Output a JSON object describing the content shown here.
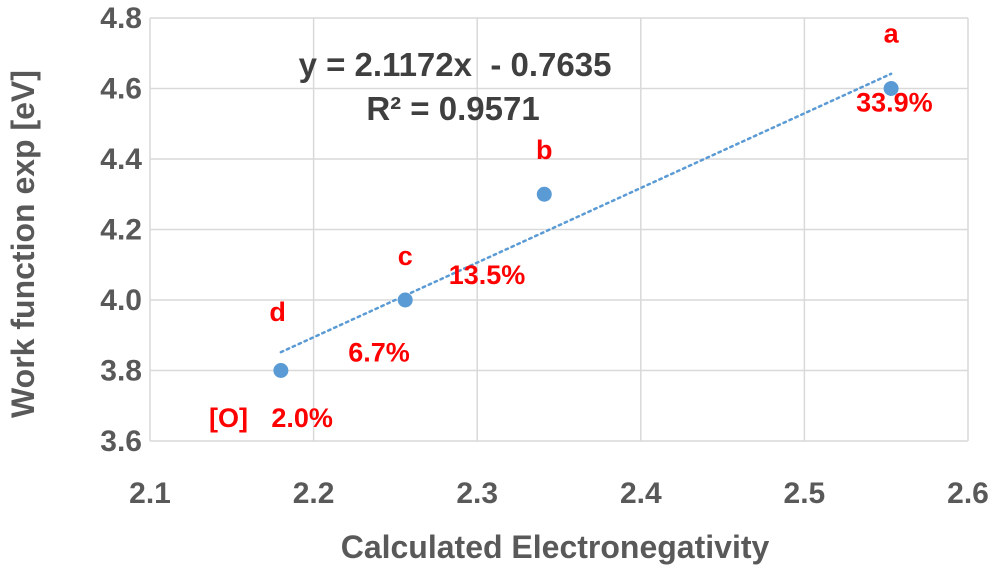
{
  "chart_data": {
    "type": "scatter",
    "xlabel": "Calculated Electronegativity",
    "ylabel": "Work function exp [eV]",
    "xlim": [
      2.1,
      2.6
    ],
    "ylim": [
      3.6,
      4.8
    ],
    "x_ticks": [
      "2.1",
      "2.2",
      "2.3",
      "2.4",
      "2.5",
      "2.6"
    ],
    "y_ticks": [
      "3.6",
      "3.8",
      "4.0",
      "4.2",
      "4.4",
      "4.6",
      "4.8"
    ],
    "grid": true,
    "marker_color": "#5b9bd5",
    "series": [
      {
        "points": [
          {
            "x": 2.18,
            "y": 3.8
          },
          {
            "x": 2.256,
            "y": 4.0
          },
          {
            "x": 2.341,
            "y": 4.3
          },
          {
            "x": 2.553,
            "y": 4.6
          }
        ]
      }
    ],
    "trendline": {
      "style": "dotted",
      "color": "#5b9bd5",
      "slope": 2.1172,
      "intercept": -0.7635,
      "x_range": [
        2.18,
        2.553
      ],
      "equation": "y = 2.1172x  - 0.7635",
      "r_squared": "R² = 0.9571"
    },
    "annotations": [
      {
        "text": "a",
        "x": 2.553,
        "y": 4.73
      },
      {
        "text": "33.9%",
        "x": 2.555,
        "y": 4.535
      },
      {
        "text": "b",
        "x": 2.341,
        "y": 4.4
      },
      {
        "text": "13.5%",
        "x": 2.306,
        "y": 4.045
      },
      {
        "text": "c",
        "x": 2.256,
        "y": 4.1
      },
      {
        "text": "6.7%",
        "x": 2.24,
        "y": 3.825
      },
      {
        "text": "d",
        "x": 2.178,
        "y": 3.94
      },
      {
        "text": "[O]",
        "x": 2.148,
        "y": 3.64
      },
      {
        "text": "2.0%",
        "x": 2.193,
        "y": 3.64
      }
    ],
    "annotation_color": "#ff0000"
  }
}
